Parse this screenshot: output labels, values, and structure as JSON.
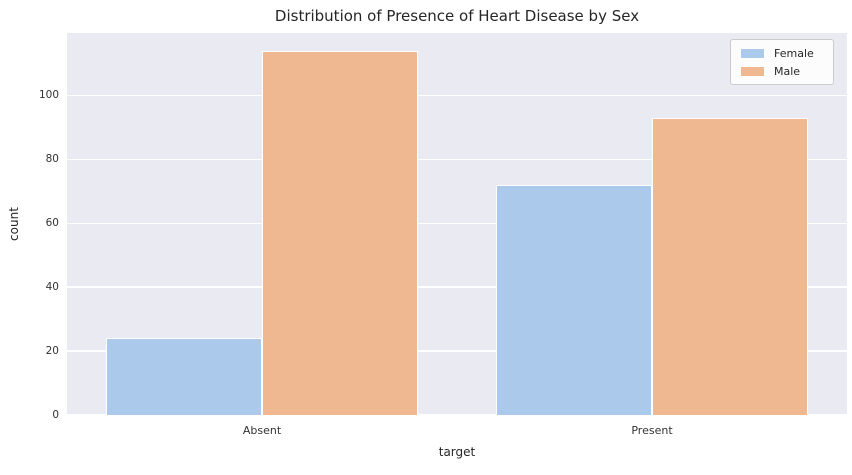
{
  "chart_data": {
    "type": "bar",
    "title": "Distribution of Presence of Heart Disease by Sex",
    "xlabel": "target",
    "ylabel": "count",
    "categories": [
      "Absent",
      "Present"
    ],
    "series": [
      {
        "name": "Female",
        "color": "#aac9eb",
        "values": [
          24,
          72
        ]
      },
      {
        "name": "Male",
        "color": "#f0b890",
        "values": [
          114,
          93
        ]
      }
    ],
    "ylim": [
      0,
      119.5
    ],
    "yticks": [
      0,
      20,
      40,
      60,
      80,
      100
    ],
    "grid": true,
    "grid_color": "#ffffff",
    "plot_background": "#eaeaf2",
    "legend_position": "upper right"
  }
}
